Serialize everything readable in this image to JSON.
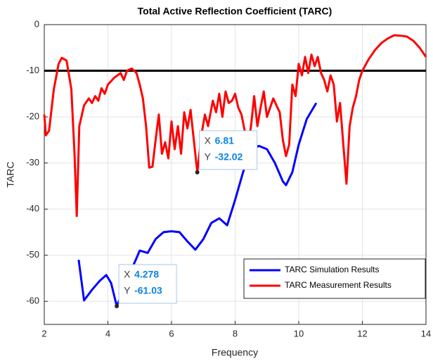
{
  "chart_data": {
    "type": "line",
    "title": "Total Active Reflection Coefficient (TARC)",
    "xlabel": "Frequency",
    "ylabel": "TARC",
    "xlim": [
      2,
      14
    ],
    "ylim": [
      -65,
      0
    ],
    "xticks": [
      2,
      4,
      6,
      8,
      10,
      12,
      14
    ],
    "yticks": [
      0,
      -10,
      -20,
      -30,
      -40,
      -50,
      -60
    ],
    "grid": true,
    "legend_position": "lower right",
    "reference_line": {
      "value": -10,
      "color": "#000000"
    },
    "series": [
      {
        "name": "TARC Simulation Results",
        "color": "#0000ff",
        "x": [
          3.08,
          3.25,
          3.5,
          3.75,
          3.95,
          4.1,
          4.278,
          4.5,
          4.75,
          5.0,
          5.25,
          5.5,
          5.75,
          6.0,
          6.25,
          6.5,
          6.75,
          7.0,
          7.25,
          7.5,
          7.75,
          8.0,
          8.25,
          8.5,
          8.75,
          9.0,
          9.25,
          9.5,
          9.6,
          9.8,
          10.0,
          10.25,
          10.55
        ],
        "values": [
          -51,
          -59.8,
          -57.5,
          -55.5,
          -54.3,
          -56,
          -61.03,
          -57.5,
          -53,
          -49,
          -49.5,
          -46.5,
          -45,
          -44.8,
          -45,
          -47,
          -48.8,
          -46.5,
          -43,
          -42,
          -43.5,
          -38,
          -32,
          -27,
          -26.3,
          -27,
          -30,
          -34,
          -34.8,
          -32,
          -26,
          -20.5,
          -17
        ]
      },
      {
        "name": "TARC Measurement Results",
        "color": "#ff0000",
        "x": [
          2.0,
          2.05,
          2.15,
          2.3,
          2.45,
          2.55,
          2.7,
          2.85,
          2.95,
          3.02,
          3.1,
          3.25,
          3.4,
          3.5,
          3.6,
          3.7,
          3.8,
          3.9,
          4.0,
          4.2,
          4.4,
          4.5,
          4.6,
          4.75,
          4.9,
          5.0,
          5.1,
          5.2,
          5.3,
          5.4,
          5.5,
          5.6,
          5.7,
          5.8,
          5.9,
          6.0,
          6.1,
          6.2,
          6.3,
          6.4,
          6.5,
          6.6,
          6.7,
          6.81,
          6.95,
          7.05,
          7.15,
          7.3,
          7.4,
          7.5,
          7.6,
          7.7,
          7.8,
          7.9,
          8.0,
          8.1,
          8.2,
          8.3,
          8.4,
          8.5,
          8.6,
          8.7,
          8.8,
          8.9,
          9.0,
          9.1,
          9.2,
          9.3,
          9.4,
          9.5,
          9.6,
          9.7,
          9.8,
          9.9,
          10.0,
          10.1,
          10.2,
          10.3,
          10.4,
          10.5,
          10.6,
          10.7,
          10.8,
          10.9,
          11.0,
          11.1,
          11.2,
          11.3,
          11.4,
          11.5,
          11.6,
          11.7,
          11.8,
          11.9,
          12.0,
          12.2,
          12.4,
          12.6,
          12.8,
          13.0,
          13.2,
          13.4,
          13.6,
          13.8,
          13.9,
          14.0
        ],
        "values": [
          -19.5,
          -24,
          -23,
          -14,
          -8.5,
          -7.2,
          -7.8,
          -14,
          -28,
          -41.5,
          -22,
          -17.5,
          -16,
          -17,
          -15.5,
          -16.5,
          -13.8,
          -15,
          -13,
          -11.5,
          -10.5,
          -12,
          -10,
          -9.5,
          -10.5,
          -13,
          -16,
          -22,
          -31,
          -30.8,
          -25,
          -19.5,
          -28,
          -25.5,
          -29,
          -21,
          -27,
          -22,
          -28,
          -19,
          -22.5,
          -18.5,
          -25,
          -32.02,
          -23.5,
          -19.5,
          -22,
          -16.5,
          -19,
          -15,
          -20,
          -14.5,
          -17,
          -16.5,
          -15,
          -18,
          -19.5,
          -23,
          -26.5,
          -22,
          -15.5,
          -22,
          -18,
          -14.5,
          -20,
          -18,
          -16,
          -17.5,
          -19,
          -25,
          -28.5,
          -26,
          -13,
          -15.5,
          -8.5,
          -11,
          -7,
          -10.5,
          -6.5,
          -9,
          -7,
          -10.5,
          -12,
          -14.5,
          -11,
          -13,
          -21,
          -17,
          -26,
          -34.5,
          -22,
          -18,
          -15.5,
          -12,
          -10,
          -7.5,
          -5.5,
          -4,
          -3,
          -2.3,
          -2.4,
          -2.6,
          -3.5,
          -5,
          -6,
          -7
        ]
      }
    ],
    "datatips": [
      {
        "x_label": "X",
        "x": 6.81,
        "y_label": "Y",
        "y": -32.02
      },
      {
        "x_label": "X",
        "x": 4.278,
        "y_label": "Y",
        "y": -61.03
      }
    ]
  }
}
